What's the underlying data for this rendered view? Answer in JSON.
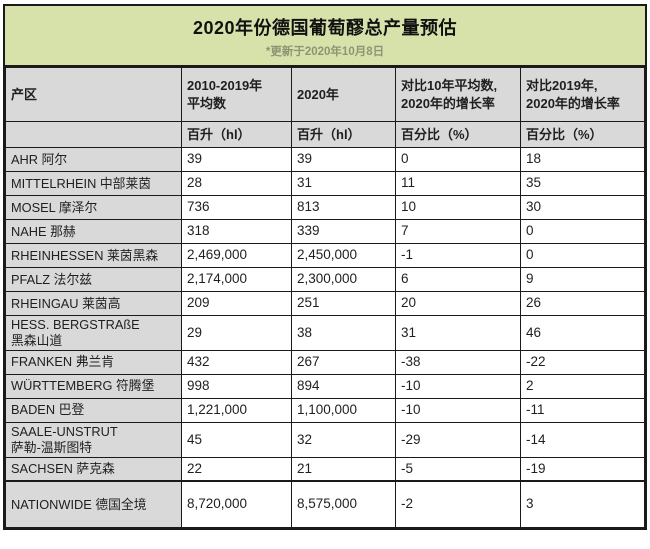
{
  "colors": {
    "page_bg": "#ffffff",
    "title_band_bg": "#d7e2ab",
    "header_bg": "#d9d9d9",
    "border": "#1a1a1a",
    "text": "#1f1f1f",
    "subtitle_text": "#8f9374"
  },
  "chart_data": {
    "type": "table",
    "title": "2020年份德国葡萄醪总产量预估",
    "subtitle": "*更新于2020年10月8日",
    "column_headers": {
      "region": "产区",
      "avg": "2010-2019年\n平均数",
      "y2020": "2020年",
      "vs10": "对比10年平均数,\n2020年的增长率",
      "vs2019": "对比2019年,\n2020年的增长率"
    },
    "unit_row": {
      "region": "",
      "avg": "百升（hl）",
      "y2020": "百升（hl）",
      "vs10": "百分比（%）",
      "vs2019": "百分比（%）"
    },
    "rows": [
      {
        "region": "AHR 阿尔",
        "avg": "39",
        "y2020": "39",
        "vs10": "0",
        "vs2019": "18"
      },
      {
        "region": "MITTELRHEIN 中部莱茵",
        "avg": "28",
        "y2020": "31",
        "vs10": "11",
        "vs2019": "35"
      },
      {
        "region": "MOSEL 摩泽尔",
        "avg": "736",
        "y2020": "813",
        "vs10": "10",
        "vs2019": "30"
      },
      {
        "region": "NAHE 那赫",
        "avg": "318",
        "y2020": "339",
        "vs10": "7",
        "vs2019": "0"
      },
      {
        "region": "RHEINHESSEN 莱茵黑森",
        "avg": "2,469,000",
        "y2020": "2,450,000",
        "vs10": "-1",
        "vs2019": "0"
      },
      {
        "region": "PFALZ 法尔兹",
        "avg": "2,174,000",
        "y2020": "2,300,000",
        "vs10": "6",
        "vs2019": "9"
      },
      {
        "region": "RHEINGAU 莱茵高",
        "avg": "209",
        "y2020": "251",
        "vs10": "20",
        "vs2019": "26"
      },
      {
        "region": "HESS. BERGSTRAßE\n黑森山道",
        "avg": "29",
        "y2020": "38",
        "vs10": "31",
        "vs2019": "46"
      },
      {
        "region": "FRANKEN 弗兰肯",
        "avg": "432",
        "y2020": "267",
        "vs10": "-38",
        "vs2019": "-22"
      },
      {
        "region": "WÜRTTEMBERG 符腾堡",
        "avg": "998",
        "y2020": "894",
        "vs10": "-10",
        "vs2019": "2"
      },
      {
        "region": "BADEN 巴登",
        "avg": "1,221,000",
        "y2020": "1,100,000",
        "vs10": "-10",
        "vs2019": "-11"
      },
      {
        "region": "SAALE-UNSTRUT\n萨勒-温斯图特",
        "avg": "45",
        "y2020": "32",
        "vs10": "-29",
        "vs2019": "-14"
      },
      {
        "region": "SACHSEN 萨克森",
        "avg": "22",
        "y2020": "21",
        "vs10": "-5",
        "vs2019": "-19"
      },
      {
        "region": "NATIONWIDE 德国全境",
        "avg": "8,720,000",
        "y2020": "8,575,000",
        "vs10": "-2",
        "vs2019": "3"
      }
    ]
  }
}
